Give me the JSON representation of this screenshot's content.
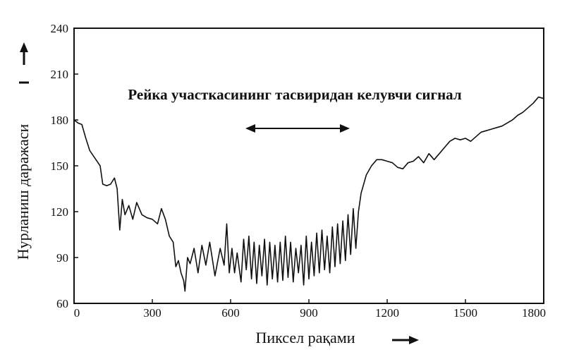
{
  "chart_data": {
    "type": "line",
    "title": "Рейка участкасининг тасвиридан келувчи сигнал",
    "xlabel": "Пиксел рақами",
    "ylabel": "Нурланиш даражаси",
    "xlim": [
      0,
      1800
    ],
    "ylim": [
      60,
      240
    ],
    "xticks": [
      "0",
      "300",
      "600",
      "900",
      "1200",
      "1500",
      "1800"
    ],
    "yticks": [
      "60",
      "90",
      "120",
      "150",
      "180",
      "210",
      "240"
    ],
    "grid": false,
    "series": [
      {
        "x": [
          0,
          15,
          30,
          45,
          60,
          80,
          100,
          110,
          125,
          140,
          155,
          165,
          175,
          185,
          195,
          210,
          225,
          240,
          260,
          280,
          300,
          320,
          335,
          350,
          365,
          380,
          390,
          400,
          410,
          420,
          425,
          435,
          445,
          460,
          475,
          490,
          505,
          520,
          540,
          560,
          575,
          585,
          595,
          605,
          615,
          625,
          640,
          650,
          660,
          670,
          680,
          690,
          700,
          710,
          720,
          730,
          740,
          750,
          760,
          770,
          780,
          790,
          800,
          810,
          820,
          830,
          840,
          850,
          860,
          870,
          880,
          890,
          900,
          910,
          920,
          930,
          940,
          950,
          960,
          970,
          980,
          990,
          1000,
          1010,
          1020,
          1030,
          1040,
          1050,
          1060,
          1070,
          1080,
          1090,
          1100,
          1120,
          1140,
          1160,
          1180,
          1200,
          1220,
          1240,
          1260,
          1280,
          1300,
          1320,
          1340,
          1360,
          1380,
          1400,
          1420,
          1440,
          1460,
          1480,
          1500,
          1520,
          1540,
          1560,
          1580,
          1600,
          1620,
          1640,
          1660,
          1680,
          1700,
          1720,
          1740,
          1760,
          1780,
          1800
        ],
        "y": [
          180,
          178,
          177,
          168,
          160,
          155,
          150,
          138,
          137,
          138,
          142,
          135,
          108,
          128,
          118,
          124,
          115,
          126,
          118,
          116,
          115,
          112,
          122,
          115,
          104,
          100,
          84,
          88,
          80,
          75,
          68,
          90,
          86,
          96,
          80,
          98,
          85,
          100,
          78,
          96,
          85,
          112,
          80,
          96,
          80,
          93,
          74,
          102,
          82,
          104,
          76,
          100,
          73,
          98,
          78,
          102,
          72,
          100,
          76,
          98,
          74,
          100,
          75,
          104,
          77,
          100,
          74,
          96,
          80,
          98,
          72,
          104,
          76,
          100,
          78,
          106,
          80,
          108,
          82,
          104,
          80,
          110,
          84,
          112,
          86,
          114,
          88,
          118,
          92,
          122,
          96,
          120,
          132,
          144,
          150,
          154,
          154,
          153,
          152,
          149,
          148,
          152,
          153,
          156,
          152,
          158,
          154,
          158,
          162,
          166,
          168,
          167,
          168,
          166,
          169,
          172,
          173,
          174,
          175,
          176,
          178,
          180,
          183,
          185,
          188,
          191,
          195,
          194
        ]
      }
    ]
  }
}
